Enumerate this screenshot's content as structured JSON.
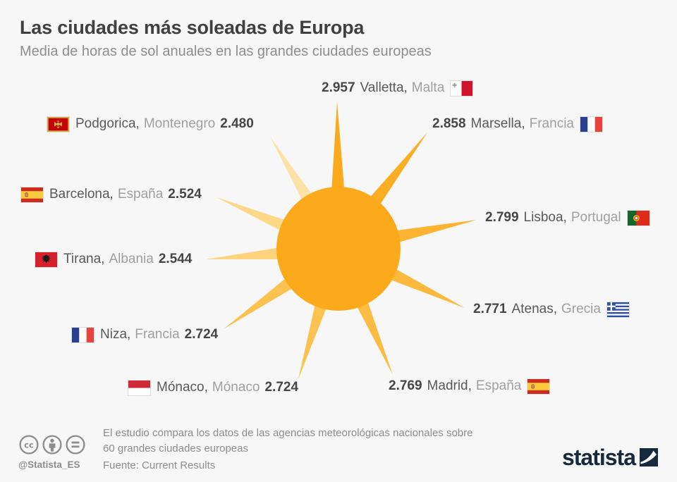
{
  "header": {
    "title": "Las ciudades más soleadas de Europa",
    "subtitle": "Media de horas de sol anuales en las grandes ciudades europeas"
  },
  "chart_data": {
    "type": "pictorial",
    "title": "Las ciudades más soleadas de Europa",
    "subtitle": "Media de horas de sol anuales en las grandes ciudades europeas",
    "metric": "horas de sol anuales (media)",
    "cities": [
      {
        "id": "valletta",
        "value": 2957,
        "value_label": "2.957",
        "city": "Valletta,",
        "country": "Malta",
        "flag": "malta",
        "flag_position": "after",
        "ray_color": "#fbaa1c"
      },
      {
        "id": "marsella",
        "value": 2858,
        "value_label": "2.858",
        "city": "Marsella,",
        "country": "Francia",
        "flag": "france",
        "flag_position": "after",
        "ray_color": "#fbae24"
      },
      {
        "id": "lisboa",
        "value": 2799,
        "value_label": "2.799",
        "city": "Lisboa,",
        "country": "Portugal",
        "flag": "portugal",
        "flag_position": "after",
        "ray_color": "#fcb432"
      },
      {
        "id": "atenas",
        "value": 2771,
        "value_label": "2.771",
        "city": "Atenas,",
        "country": "Grecia",
        "flag": "greece",
        "flag_position": "after",
        "ray_color": "#fcb93d"
      },
      {
        "id": "madrid",
        "value": 2769,
        "value_label": "2.769",
        "city": "Madrid,",
        "country": "España",
        "flag": "spain",
        "flag_position": "after",
        "ray_color": "#fcbc42"
      },
      {
        "id": "monaco",
        "value": 2724,
        "value_label": "2.724",
        "city": "Mónaco,",
        "country": "Mónaco",
        "flag": "monaco",
        "flag_position": "before",
        "ray_color": "#fcc250"
      },
      {
        "id": "niza",
        "value": 2724,
        "value_label": "2.724",
        "city": "Niza,",
        "country": "Francia",
        "flag": "france",
        "flag_position": "before",
        "ray_color": "#fcc250"
      },
      {
        "id": "tirana",
        "value": 2544,
        "value_label": "2.544",
        "city": "Tirana,",
        "country": "Albania",
        "flag": "albania",
        "flag_position": "before",
        "ray_color": "#fdd37d"
      },
      {
        "id": "barcelona",
        "value": 2524,
        "value_label": "2.524",
        "city": "Barcelona,",
        "country": "España",
        "flag": "spain",
        "flag_position": "before",
        "ray_color": "#fdd888"
      },
      {
        "id": "podgorica",
        "value": 2480,
        "value_label": "2.480",
        "city": "Podgorica,",
        "country": "Montenegro",
        "flag": "montenegro",
        "flag_position": "before",
        "ray_color": "#fde2a8"
      }
    ],
    "legend_position": "none",
    "grid": false
  },
  "colors": {
    "background": "#f7f7f7",
    "sun_core": "#fbaa1c",
    "brand_navy": "#17293d",
    "footer_gray": "#8c8d8f"
  },
  "footer": {
    "note_line1": "El estudio compara los datos de las agencias meteorológicas nacionales sobre",
    "note_line2": "60 grandes ciudades europeas",
    "source": "Fuente: Current Results",
    "handle": "@Statista_ES",
    "license_icons": [
      "cc-icon",
      "attribution-icon",
      "equals-icon"
    ],
    "brand": "statista"
  }
}
